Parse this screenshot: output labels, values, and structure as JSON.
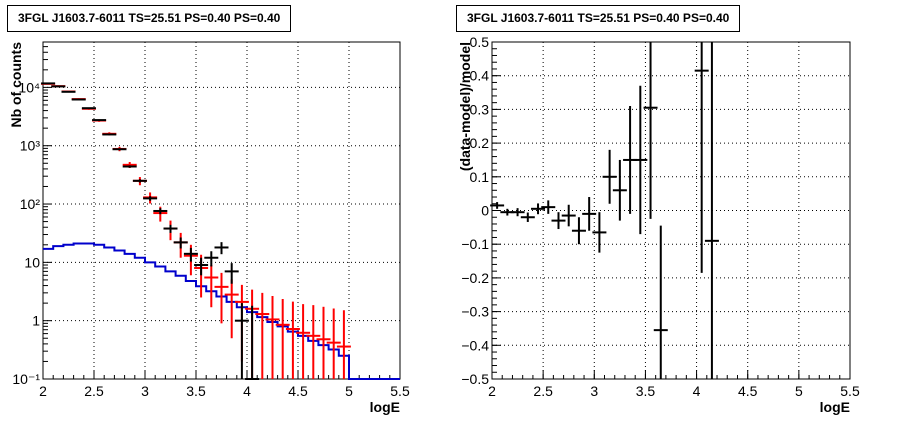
{
  "panels": [
    {
      "title": "3FGL J1603.7-6011 TS=25.51 PS=0.40 PS=0.40",
      "chart_data": {
        "type": "line",
        "xlabel": "logE",
        "ylabel": "Nb of counts",
        "xlim": [
          2,
          5.5
        ],
        "ylim": [
          0.1,
          60000
        ],
        "yscale": "log",
        "xticks": [
          "2",
          "2.5",
          "3",
          "3.5",
          "4",
          "4.5",
          "5",
          "5.5"
        ],
        "yticks": [
          "10⁻¹",
          "1",
          "10",
          "10²",
          "10³",
          "10⁴"
        ],
        "grid": true,
        "bin_edges": [
          2.0,
          2.1,
          2.2,
          2.3,
          2.4,
          2.5,
          2.6,
          2.7,
          2.8,
          2.9,
          3.0,
          3.1,
          3.2,
          3.3,
          3.4,
          3.5,
          3.6,
          3.7,
          3.8,
          3.9,
          4.0,
          4.1,
          4.2,
          4.3,
          4.4,
          4.5,
          4.6,
          4.7,
          4.8,
          4.9,
          5.0,
          5.1,
          5.2,
          5.3,
          5.4,
          5.5
        ],
        "series": [
          {
            "role": "model-total-red",
            "color": "#ff0000",
            "x": [
              2.05,
              2.15,
              2.25,
              2.35,
              2.45,
              2.55,
              2.65,
              2.75,
              2.85,
              2.95,
              3.05,
              3.15,
              3.25,
              3.35,
              3.45,
              3.55,
              3.65,
              3.75,
              3.85,
              3.95,
              4.05,
              4.15,
              4.25,
              4.35,
              4.45,
              4.55,
              4.65,
              4.75,
              4.85,
              4.95
            ],
            "y": [
              11500,
              10500,
              8500,
              6300,
              4300,
              2700,
              1600,
              880,
              470,
              250,
              130,
              70,
              38,
              22,
              13,
              8,
              5.5,
              3.8,
              2.8,
              2.1,
              1.6,
              1.3,
              1.05,
              0.85,
              0.72,
              0.62,
              0.55,
              0.48,
              0.42,
              0.36
            ],
            "yerr_low": [
              300,
              280,
              250,
              200,
              160,
              130,
              100,
              75,
              55,
              40,
              28,
              20,
              14,
              10,
              7,
              5.5,
              3.8,
              2.9,
              2.3,
              1.9,
              1.6,
              1.3,
              1.05,
              0.85,
              0.72,
              0.62,
              0.55,
              0.48,
              0.42,
              0.36
            ],
            "yerr_high": [
              300,
              280,
              250,
              200,
              160,
              130,
              100,
              75,
              55,
              40,
              28,
              20,
              14,
              10,
              7,
              5.5,
              3.5,
              2.8,
              2.3,
              2.0,
              1.8,
              1.7,
              1.6,
              1.5,
              1.4,
              1.3,
              1.3,
              1.25,
              1.2,
              1.15
            ]
          },
          {
            "role": "data-black",
            "color": "#000000",
            "x": [
              2.05,
              2.15,
              2.25,
              2.35,
              2.45,
              2.55,
              2.65,
              2.75,
              2.85,
              2.95,
              3.05,
              3.15,
              3.25,
              3.35,
              3.45,
              3.55,
              3.65,
              3.75,
              3.85,
              3.95,
              4.05
            ],
            "y": [
              11700,
              10400,
              8400,
              6200,
              4400,
              2750,
              1560,
              870,
              440,
              250,
              125,
              76,
              38,
              22,
              14,
              9,
              12,
              18,
              7,
              1,
              0
            ],
            "yerr_low": [
              108,
              102,
              92,
              79,
              66,
              52,
              40,
              29,
              21,
              16,
              11,
              9,
              6,
              4.7,
              3.7,
              3,
              3.5,
              4.2,
              2.7,
              1,
              0
            ],
            "yerr_high": [
              108,
              102,
              92,
              79,
              66,
              52,
              40,
              29,
              21,
              16,
              11,
              9,
              6,
              4.7,
              3.7,
              3,
              3.5,
              4.2,
              2.7,
              1,
              1.8
            ]
          },
          {
            "role": "model-source-blue",
            "color": "#0000cc",
            "step": true,
            "y": [
              17,
              19,
              20,
              21,
              21,
              20,
              18,
              16,
              14,
              12,
              10,
              8.5,
              7,
              5.9,
              4.8,
              3.9,
              3.2,
              2.6,
              2.1,
              1.7,
              1.4,
              1.15,
              0.95,
              0.8,
              0.65,
              0.55,
              0.45,
              0.38,
              0.32,
              0.25,
              0.1,
              0.1,
              0.1,
              0.1,
              0.1
            ]
          }
        ]
      }
    },
    {
      "title": "3FGL J1603.7-6011 TS=25.51 PS=0.40 PS=0.40",
      "chart_data": {
        "type": "scatter",
        "xlabel": "logE",
        "ylabel": "(data-model)/model",
        "xlim": [
          2,
          5.5
        ],
        "ylim": [
          -0.5,
          0.5
        ],
        "xticks": [
          "2",
          "2.5",
          "3",
          "3.5",
          "4",
          "4.5",
          "5",
          "5.5"
        ],
        "yticks": [
          "−0.5",
          "−0.4",
          "−0.3",
          "−0.2",
          "−0.1",
          "0",
          "0.1",
          "0.2",
          "0.3",
          "0.4",
          "0.5"
        ],
        "grid": true,
        "series": [
          {
            "role": "residuals",
            "color": "#000000",
            "x": [
              2.05,
              2.15,
              2.25,
              2.35,
              2.45,
              2.55,
              2.65,
              2.75,
              2.85,
              2.95,
              3.05,
              3.15,
              3.25,
              3.35,
              3.45,
              3.55,
              3.65,
              4.05,
              4.15
            ],
            "y": [
              0.015,
              -0.005,
              -0.005,
              -0.02,
              0.005,
              0.01,
              -0.03,
              -0.015,
              -0.06,
              -0.01,
              -0.065,
              0.1,
              0.06,
              0.15,
              0.15,
              0.305,
              -0.355,
              0.415,
              -0.09
            ],
            "yerr": [
              0.01,
              0.01,
              0.012,
              0.014,
              0.016,
              0.02,
              0.025,
              0.032,
              0.04,
              0.05,
              0.06,
              0.08,
              0.09,
              0.16,
              0.22,
              0.33,
              0.31,
              0.6,
              0.6
            ]
          }
        ]
      }
    }
  ]
}
